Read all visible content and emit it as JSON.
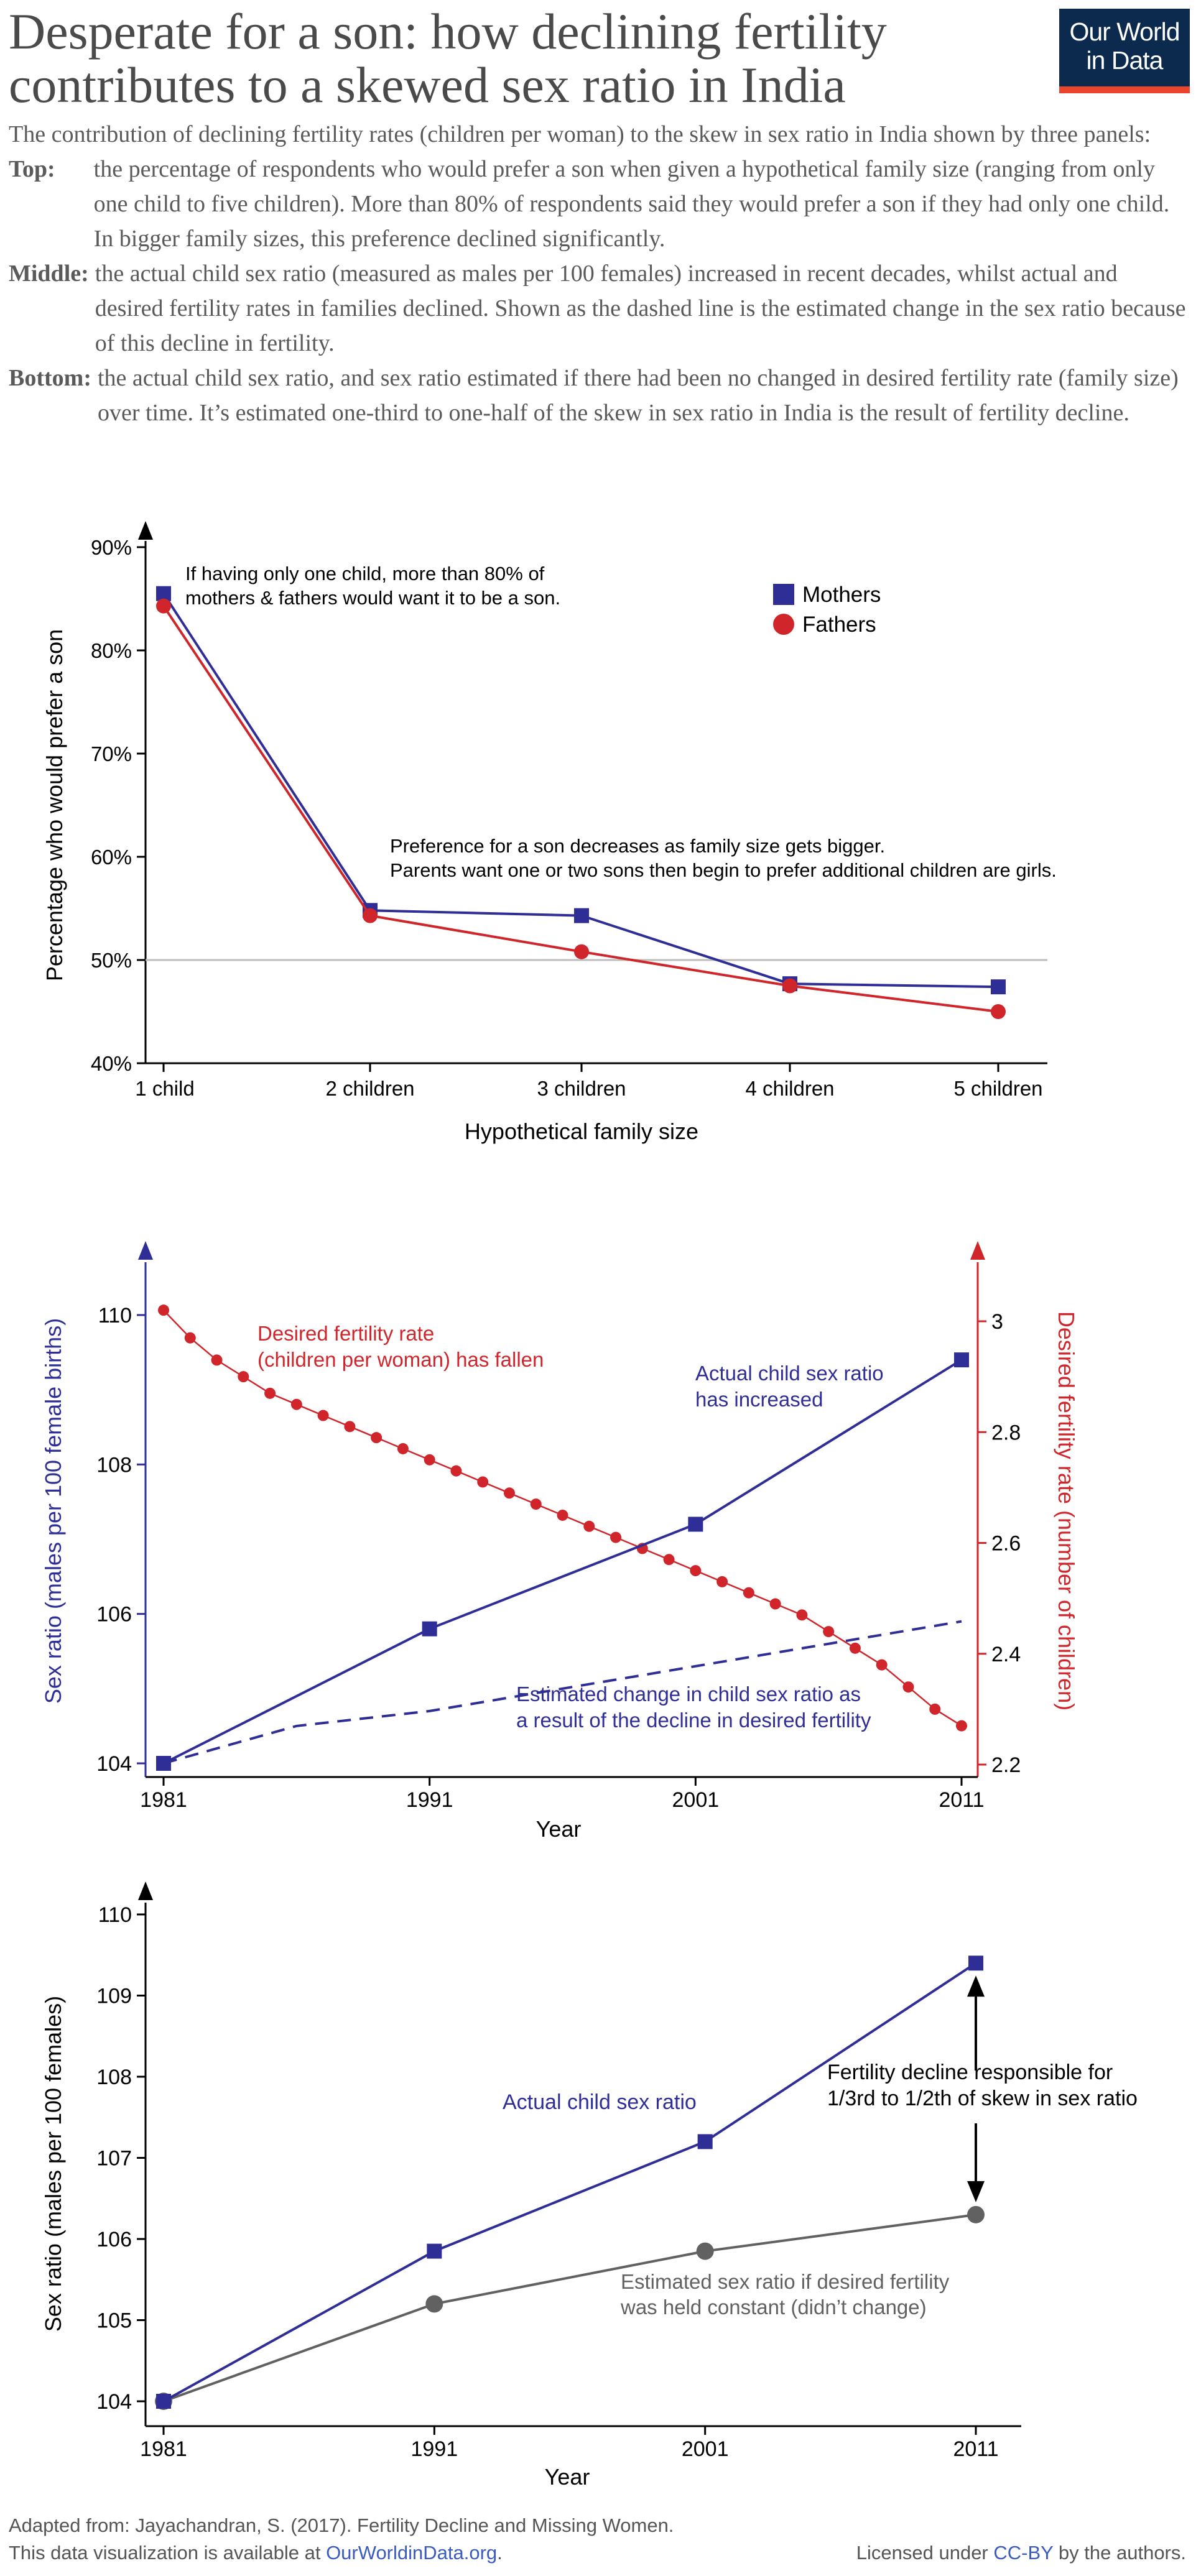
{
  "header": {
    "title": "Desperate for a son: how declining fertility contributes to a skewed sex ratio in India",
    "logo_line1": "Our World",
    "logo_line2": "in Data"
  },
  "intro": {
    "lead": "The contribution of declining fertility rates (children per woman) to the skew in sex ratio in India shown by three panels:",
    "top_label": "Top",
    "top_text": "the percentage of respondents who would prefer a son when given a hypothetical family size (ranging from only one child to five children). More than 80% of respondents said they would prefer a son if they had only one child. In bigger family sizes, this preference declined significantly.",
    "middle_label": "Middle",
    "middle_text": "the actual child sex ratio (measured as males per 100 females) increased in recent decades, whilst actual and desired fertility rates in families declined. Shown as the dashed line is the estimated change in the sex ratio because of this decline in fertility.",
    "bottom_label": "Bottom",
    "bottom_text": "the actual child sex ratio, and sex ratio estimated if there had been no changed in desired fertility rate (family size) over time. It’s estimated one-third to one-half of the skew in sex ratio in India is the result of fertility decline."
  },
  "colors": {
    "blue": "#2e2e96",
    "red": "#d0262b",
    "grey": "#616161",
    "axis": "#000000",
    "refline": "#bdbdbd"
  },
  "chart_data": [
    {
      "type": "line",
      "categories": [
        "1 child",
        "2 children",
        "3 children",
        "4 children",
        "5 children"
      ],
      "xlabel": "Hypothetical family size",
      "ylabel": "Percentage who would prefer a son",
      "ylim": [
        40,
        90
      ],
      "yticks": [
        "40%",
        "50%",
        "60%",
        "70%",
        "80%",
        "90%"
      ],
      "reference_line": 50,
      "legend_placement": "top-right",
      "series": [
        {
          "name": "Mothers",
          "marker": "square",
          "color": "#2e2e96",
          "values": [
            85.5,
            54.8,
            54.3,
            47.7,
            47.4
          ]
        },
        {
          "name": "Fathers",
          "marker": "circle",
          "color": "#d0262b",
          "values": [
            84.3,
            54.3,
            50.8,
            47.5,
            45.0
          ]
        }
      ],
      "annotations": [
        "If having only one child, more than 80% of",
        "mothers & fathers would want it to be a son.",
        "Preference for a son decreases as family size gets bigger.",
        "Parents want one or two sons then begin to prefer additional children are girls."
      ]
    },
    {
      "type": "line",
      "xlabel": "Year",
      "xticks": [
        1981,
        1991,
        2001,
        2011
      ],
      "ylabel_left": "Sex ratio (males per 100 female births)",
      "ylim_left": [
        104,
        110
      ],
      "yticks_left": [
        104,
        106,
        108,
        110
      ],
      "ylabel_right": "Desired fertility rate (number of children)",
      "ylim_right": [
        2.2,
        3.0
      ],
      "yticks_right": [
        "2.2",
        "2.4",
        "2.6",
        "2.8",
        "3"
      ],
      "series": [
        {
          "axis": "left",
          "style": "solid",
          "marker": "square",
          "color": "#2e2e96",
          "x": [
            1981,
            1991,
            2001,
            2011
          ],
          "values": [
            104.0,
            105.8,
            107.2,
            109.4
          ]
        },
        {
          "axis": "left",
          "style": "dashed",
          "color": "#2e2e96",
          "x": [
            1981,
            1986,
            1991,
            1996,
            2001,
            2006,
            2011
          ],
          "values": [
            104.0,
            104.5,
            104.7,
            105.0,
            105.3,
            105.6,
            105.9
          ]
        },
        {
          "axis": "right",
          "style": "solid",
          "marker": "circle",
          "color": "#d0262b",
          "x": [
            1981,
            1982,
            1983,
            1984,
            1985,
            1986,
            1987,
            1988,
            1989,
            1990,
            1991,
            1992,
            1993,
            1994,
            1995,
            1996,
            1997,
            1998,
            1999,
            2000,
            2001,
            2002,
            2003,
            2004,
            2005,
            2006,
            2007,
            2008,
            2009,
            2010,
            2011
          ],
          "values": [
            3.02,
            2.97,
            2.93,
            2.9,
            2.87,
            2.85,
            2.83,
            2.81,
            2.79,
            2.77,
            2.75,
            2.73,
            2.71,
            2.69,
            2.67,
            2.65,
            2.63,
            2.61,
            2.59,
            2.57,
            2.55,
            2.53,
            2.51,
            2.49,
            2.47,
            2.44,
            2.41,
            2.38,
            2.34,
            2.3,
            2.27
          ]
        }
      ],
      "annotations": [
        "Desired fertility rate",
        "(children per woman) has fallen",
        "Actual child sex ratio",
        "has increased",
        "Estimated change in child sex ratio as",
        "a result of the decline in desired fertility"
      ]
    },
    {
      "type": "line",
      "xlabel": "Year",
      "xticks": [
        1981,
        1991,
        2001,
        2011
      ],
      "ylabel": "Sex ratio (males per 100 females)",
      "ylim": [
        104,
        110
      ],
      "yticks": [
        104,
        105,
        106,
        107,
        108,
        109,
        110
      ],
      "series": [
        {
          "name": "Actual child sex ratio",
          "marker": "square",
          "color": "#2e2e96",
          "x": [
            1981,
            1991,
            2001,
            2011
          ],
          "values": [
            104.0,
            105.85,
            107.2,
            109.4
          ]
        },
        {
          "marker": "circle",
          "color": "#616161",
          "x": [
            1981,
            1991,
            2001,
            2011
          ],
          "values": [
            104.0,
            105.2,
            105.85,
            106.3
          ]
        }
      ],
      "annotations": [
        "Actual child sex ratio",
        "Estimated sex ratio if desired fertility",
        "was held constant (didn’t change)",
        "Fertility decline responsible for",
        "1/3rd to 1/2th of skew in sex ratio"
      ]
    }
  ],
  "footer": {
    "source_line": "Adapted from: Jayachandran, S. (2017). Fertility Decline and Missing Women.",
    "available_prefix": "This data visualization is available at",
    "available_link": "OurWorldinData.org",
    "available_suffix": ".",
    "license_prefix": "Licensed under",
    "license_link": "CC-BY",
    "license_suffix": "by the authors."
  }
}
